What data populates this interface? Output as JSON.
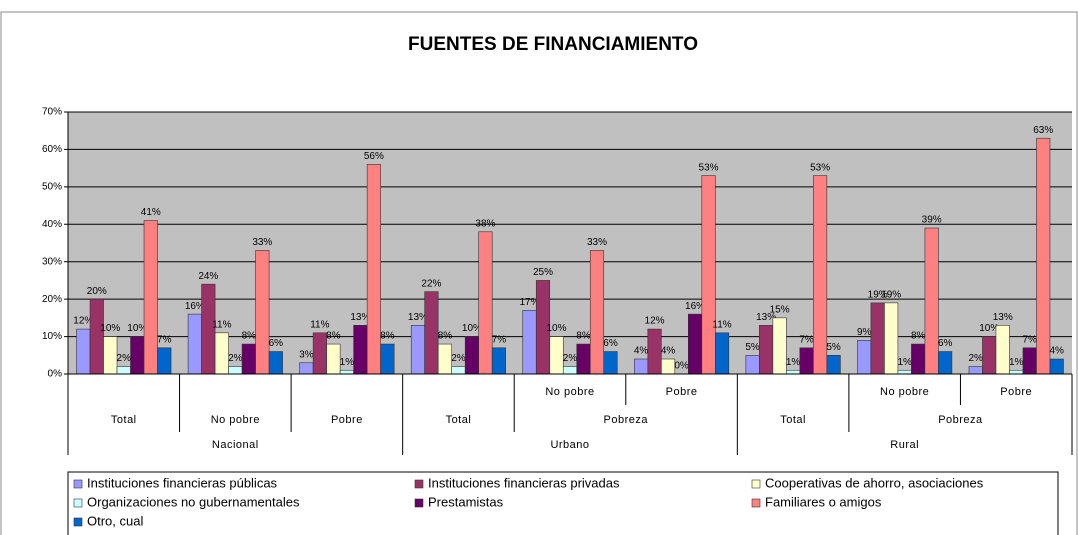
{
  "chart_data": {
    "type": "bar",
    "title": "FUENTES DE FINANCIAMIENTO",
    "categories": [
      "Total",
      "No pobre",
      "Pobre",
      "Total",
      "No pobre",
      "Pobre",
      "Total",
      "No pobre",
      "Pobre"
    ],
    "category_subgroups": [
      null,
      null,
      null,
      null,
      "Pobreza",
      "Pobreza",
      null,
      "Pobreza",
      "Pobreza"
    ],
    "category_groups": [
      "Nacional",
      "Nacional",
      "Nacional",
      "Urbano",
      "Urbano",
      "Urbano",
      "Rural",
      "Rural",
      "Rural"
    ],
    "ylim": [
      0,
      70
    ],
    "yticks": [
      {
        "value": 0,
        "label": "0%"
      },
      {
        "value": 10,
        "label": "10%"
      },
      {
        "value": 20,
        "label": "20%"
      },
      {
        "value": 30,
        "label": "30%"
      },
      {
        "value": 40,
        "label": "40%"
      },
      {
        "value": 50,
        "label": "50%"
      },
      {
        "value": 60,
        "label": "60%"
      },
      {
        "value": 70,
        "label": "70%"
      }
    ],
    "grid": true,
    "series": [
      {
        "name": "Instituciones financieras públicas",
        "color": "#9999ff",
        "values": [
          12,
          16,
          3,
          13,
          17,
          4,
          5,
          9,
          2
        ],
        "value_labels": [
          "12%",
          "16%",
          "3%",
          "13%",
          "17%",
          "4%",
          "5%",
          "9%",
          "2%"
        ]
      },
      {
        "name": "Instituciones financieras privadas",
        "color": "#993366",
        "values": [
          20,
          24,
          11,
          22,
          25,
          12,
          13,
          19,
          10
        ],
        "value_labels": [
          "20%",
          "24%",
          "11%",
          "22%",
          "25%",
          "12%",
          "13%",
          "19%",
          "10%"
        ]
      },
      {
        "name": "Cooperativas de ahorro, asociaciones",
        "color": "#ffffcc",
        "values": [
          10,
          11,
          8,
          8,
          10,
          4,
          15,
          19,
          13
        ],
        "value_labels": [
          "10%",
          "11%",
          "8%",
          "8%",
          "10%",
          "4%",
          "15%",
          "19%",
          "13%"
        ]
      },
      {
        "name": "Organizaciones no gubernamentales",
        "color": "#ccffff",
        "values": [
          2,
          2,
          1,
          2,
          2,
          0,
          1,
          1,
          1
        ],
        "value_labels": [
          "2%",
          "2%",
          "1%",
          "2%",
          "2%",
          "0%",
          "1%",
          "1%",
          "1%"
        ]
      },
      {
        "name": "Prestamistas",
        "color": "#660066",
        "values": [
          10,
          8,
          13,
          10,
          8,
          16,
          7,
          8,
          7
        ],
        "value_labels": [
          "10%",
          "8%",
          "13%",
          "10%",
          "8%",
          "16%",
          "7%",
          "8%",
          "7%"
        ]
      },
      {
        "name": "Familiares o amigos",
        "color": "#ff8080",
        "values": [
          41,
          33,
          56,
          38,
          33,
          53,
          53,
          39,
          63
        ],
        "value_labels": [
          "41%",
          "33%",
          "56%",
          "38%",
          "33%",
          "53%",
          "53%",
          "39%",
          "63%"
        ]
      },
      {
        "name": "Otro, cual",
        "color": "#0066cc",
        "values": [
          7,
          6,
          8,
          7,
          6,
          11,
          5,
          6,
          4
        ],
        "value_labels": [
          "7%",
          "6%",
          "8%",
          "7%",
          "6%",
          "11%",
          "5%",
          "6%",
          "4%"
        ]
      }
    ]
  }
}
